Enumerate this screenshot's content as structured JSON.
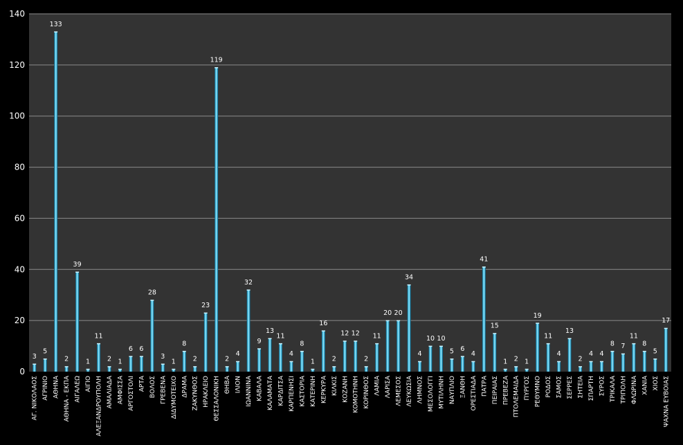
{
  "chart_data": {
    "type": "bar",
    "title": "",
    "xlabel": "",
    "ylabel": "",
    "ylim": [
      0,
      140
    ],
    "yticks": [
      "0",
      "20",
      "40",
      "60",
      "80",
      "100",
      "120",
      "140"
    ],
    "grid": true,
    "legend": "none",
    "colors": {
      "background": "#000000",
      "plot_area": "#333333",
      "gridline": "#8c8c8c",
      "bar_light": "#7fdcf5",
      "bar_mid": "#2fa6cf",
      "bar_dark": "#14678a",
      "text": "#ffffff"
    },
    "categories": [
      "ΑΓ. ΝΙΚΟΛΑΟΣ",
      "ΑΓΡΙΝΙΟ",
      "ΑΘΗΝΑ",
      "ΑΘΗΝΑ - ΕΚΠΑ",
      "ΑΙΓΑΛΕΩ",
      "ΑΙΓΙΟ",
      "ΑΛΕΞΑΝΔΡΟΥΠΟΛΗ",
      "ΑΜΑΛΙΑΔΑ",
      "ΑΜΦΙΣΣΑ",
      "ΑΡΓΟΣΤΟΛΙ",
      "ΑΡΤΑ",
      "ΒΟΛΟΣ",
      "ΓΡΕΒΕΝΑ",
      "ΔΙΔΥΜΟΤΕΙΧΟ",
      "ΔΡΑΜΑ",
      "ΖΑΚΥΝΘΟΣ",
      "ΗΡΑΚΛΕΙΟ",
      "ΘΕΣΣΑΛΟΝΙΚΗ",
      "ΘΗΒΑ",
      "ΙΛΙΟΝ",
      "ΙΩΑΝΝΙΝΑ",
      "ΚΑΒΑΛΑ",
      "ΚΑΛΑΜΑΤΑ",
      "ΚΑΡΔΙΤΣΑ",
      "ΚΑΡΠΕΝΗΣΙ",
      "ΚΑΣΤΟΡΙΑ",
      "ΚΑΤΕΡΙΝΗ",
      "ΚΕΡΚΥΡΑ",
      "ΚΙΛΚΙΣ",
      "ΚΟΖΑΝΗ",
      "ΚΟΜΟΤΗΝΗ",
      "ΚΟΡΙΝΘΟΣ",
      "ΛΑΜΙΑ",
      "ΛΑΡΙΣΑ",
      "ΛΕΜΕΣΟΣ",
      "ΛΕΥΚΩΣΙΑ",
      "ΛΗΜΝΟΣ",
      "ΜΕΣΟΛΟΓΓΙ",
      "ΜΥΤΙΛΗΝΗ",
      "ΝΑΥΠΛΙΟ",
      "ΞΑΝΘΗ",
      "ΟΡΕΣΤΙΑΔΑ",
      "ΠΑΤΡΑ",
      "ΠΕΙΡΑΙΑΣ",
      "ΠΡΕΒΕΖΑ",
      "ΠΤΟΛΕΜΑΙΔΑ",
      "ΠΥΡΓΟΣ",
      "ΡΕΘΥΜΝΟ",
      "ΡΟΔΟΣ",
      "ΣΑΜΟΣ",
      "ΣΕΡΡΕΣ",
      "ΣΗΤΕΙΑ",
      "ΣΠΑΡΤΗ",
      "ΣΥΡΟΣ",
      "ΤΡΙΚΑΛΑ",
      "ΤΡΙΠΟΛΗ",
      "ΦΛΩΡΙΝΑ",
      "ΧΑΝΙΑ",
      "ΧΙΟΣ",
      "ΨΑΧΝΑ ΕΥΒΟΙΑΣ"
    ],
    "values": [
      3,
      5,
      133,
      2,
      39,
      1,
      11,
      2,
      1,
      6,
      6,
      28,
      3,
      1,
      8,
      2,
      23,
      119,
      2,
      4,
      32,
      9,
      13,
      11,
      4,
      8,
      1,
      16,
      2,
      12,
      12,
      2,
      11,
      20,
      20,
      34,
      4,
      10,
      10,
      5,
      6,
      4,
      41,
      15,
      1,
      2,
      1,
      19,
      11,
      4,
      13,
      2,
      4,
      4,
      8,
      7,
      11,
      8,
      5,
      17
    ]
  }
}
